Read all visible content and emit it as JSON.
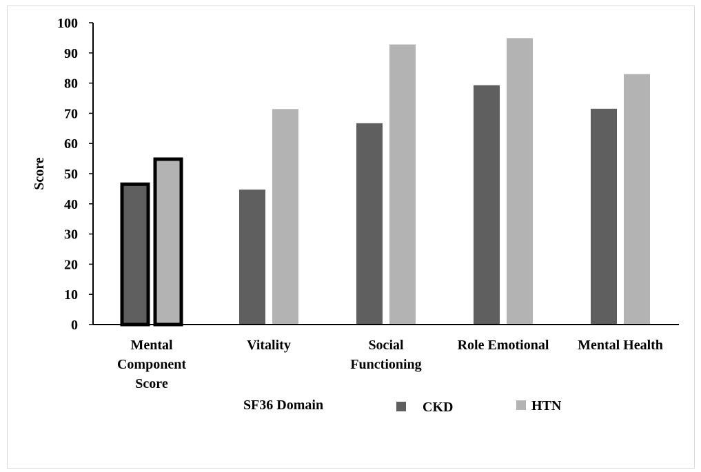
{
  "chart_data": {
    "type": "bar",
    "title": "",
    "xlabel": "SF36 Domain",
    "ylabel": "Score",
    "ylim": [
      0,
      100
    ],
    "yticks": [
      0,
      10,
      20,
      30,
      40,
      50,
      60,
      70,
      80,
      90,
      100
    ],
    "categories": [
      "Mental Component Score",
      "Vitality",
      "Social Functioning",
      "Role Emotional",
      "Mental Health"
    ],
    "category_lines": [
      [
        "Mental",
        "Component",
        "Score"
      ],
      [
        "Vitality"
      ],
      [
        "Social",
        "Functioning"
      ],
      [
        "Role Emotional"
      ],
      [
        "Mental Health"
      ]
    ],
    "series": [
      {
        "name": "CKD",
        "color": "#5f5f5f",
        "values": [
          46.5,
          44.7,
          66.7,
          79.3,
          71.5
        ]
      },
      {
        "name": "HTN",
        "color": "#b3b3b3",
        "values": [
          54.8,
          71.4,
          92.8,
          94.9,
          83.0
        ]
      }
    ],
    "highlighted_category": "Mental Component Score",
    "grid": false,
    "legend_position": "bottom"
  }
}
